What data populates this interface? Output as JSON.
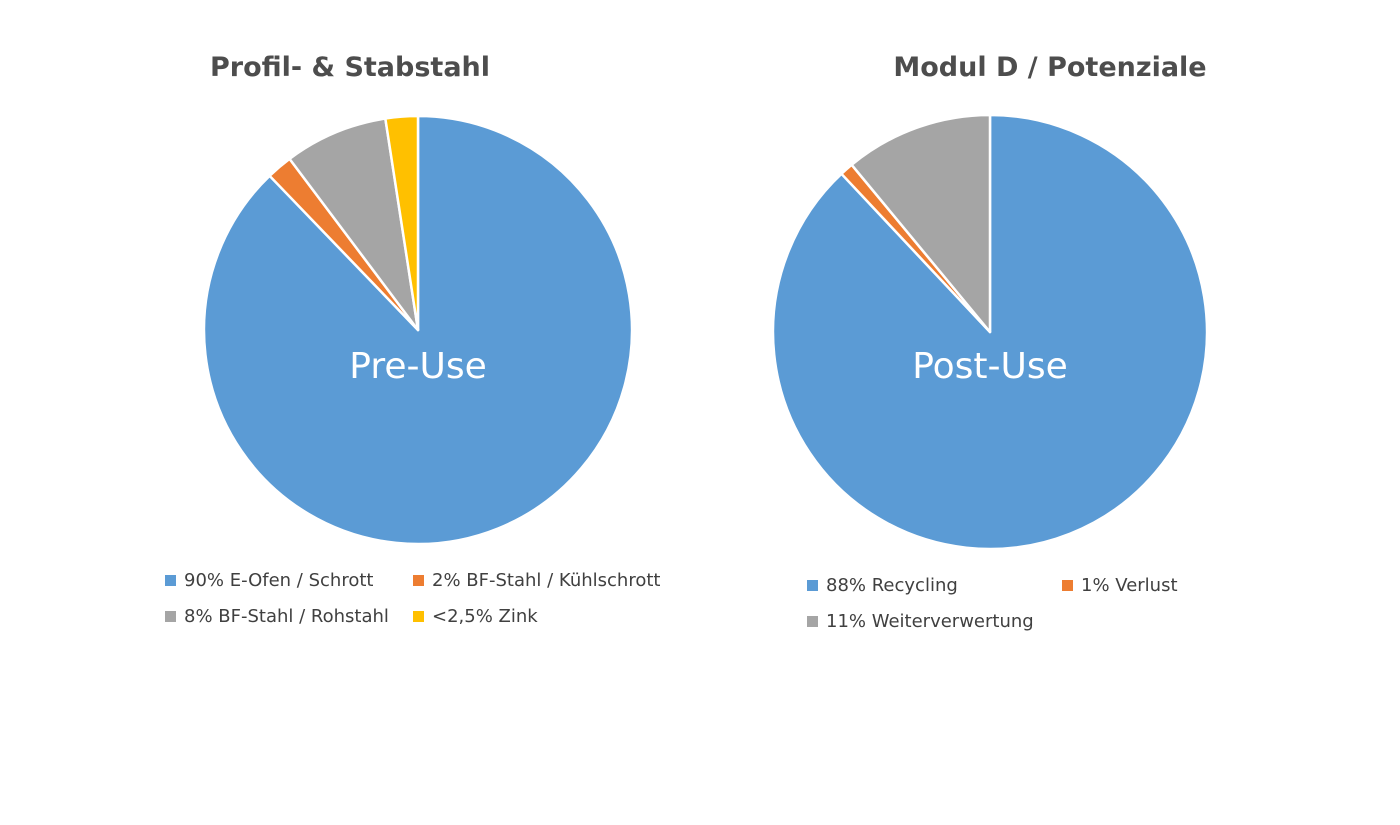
{
  "chart_data": [
    {
      "type": "pie",
      "title": "Profil- & Stabstahl",
      "center_label": "Pre-Use",
      "slices": [
        {
          "label": "90% E-Ofen / Schrott",
          "value": 90,
          "color": "#5b9bd5"
        },
        {
          "label": "2% BF-Stahl / Kühlschrott",
          "value": 2,
          "color": "#ed7d31"
        },
        {
          "label": "8% BF-Stahl / Rohstahl",
          "value": 8,
          "color": "#a5a5a5"
        },
        {
          "label": "<2,5% Zink",
          "value": 2.5,
          "color": "#ffc000"
        }
      ],
      "legend": [
        {
          "label": "90% E-Ofen / Schrott",
          "color": "#5b9bd5"
        },
        {
          "label": "2% BF-Stahl / Kühlschrott",
          "color": "#ed7d31"
        },
        {
          "label": "8% BF-Stahl / Rohstahl",
          "color": "#a5a5a5"
        },
        {
          "label": "<2,5% Zink",
          "color": "#ffc000"
        }
      ],
      "legend_position": "bottom"
    },
    {
      "type": "pie",
      "title": "Modul D / Potenziale",
      "center_label": "Post-Use",
      "slices": [
        {
          "label": "88% Recycling",
          "value": 88,
          "color": "#5b9bd5"
        },
        {
          "label": "1% Verlust",
          "value": 1,
          "color": "#ed7d31"
        },
        {
          "label": "11% Weiterverwertung",
          "value": 11,
          "color": "#a5a5a5"
        }
      ],
      "legend": [
        {
          "label": "88% Recycling",
          "color": "#5b9bd5"
        },
        {
          "label": "1% Verlust",
          "color": "#ed7d31"
        },
        {
          "label": "11% Weiterverwertung",
          "color": "#a5a5a5"
        }
      ],
      "legend_position": "bottom"
    }
  ]
}
